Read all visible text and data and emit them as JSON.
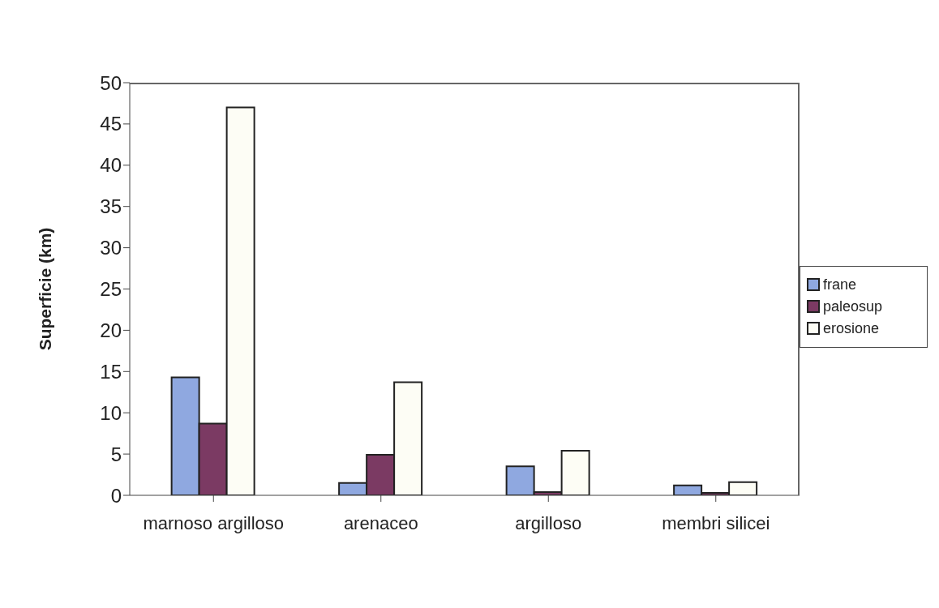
{
  "chart_data": {
    "type": "bar",
    "ylabel": "Superficie (km)",
    "categories": [
      "marnoso argilloso",
      "arenaceo",
      "argilloso",
      "membri silicei"
    ],
    "series": [
      {
        "name": "frane",
        "color": "#8fa8e0",
        "values": [
          14.3,
          1.5,
          3.5,
          1.2
        ]
      },
      {
        "name": "paleosup",
        "color": "#7b3a63",
        "values": [
          8.7,
          4.9,
          0.4,
          0.3
        ]
      },
      {
        "name": "erosione",
        "color": "#fdfdf5",
        "values": [
          47.0,
          13.7,
          5.4,
          1.6
        ]
      }
    ],
    "ylim": [
      0,
      50
    ],
    "yticks": [
      0,
      5,
      10,
      15,
      20,
      25,
      30,
      35,
      40,
      45,
      50
    ],
    "grid": false,
    "legend": "right"
  }
}
